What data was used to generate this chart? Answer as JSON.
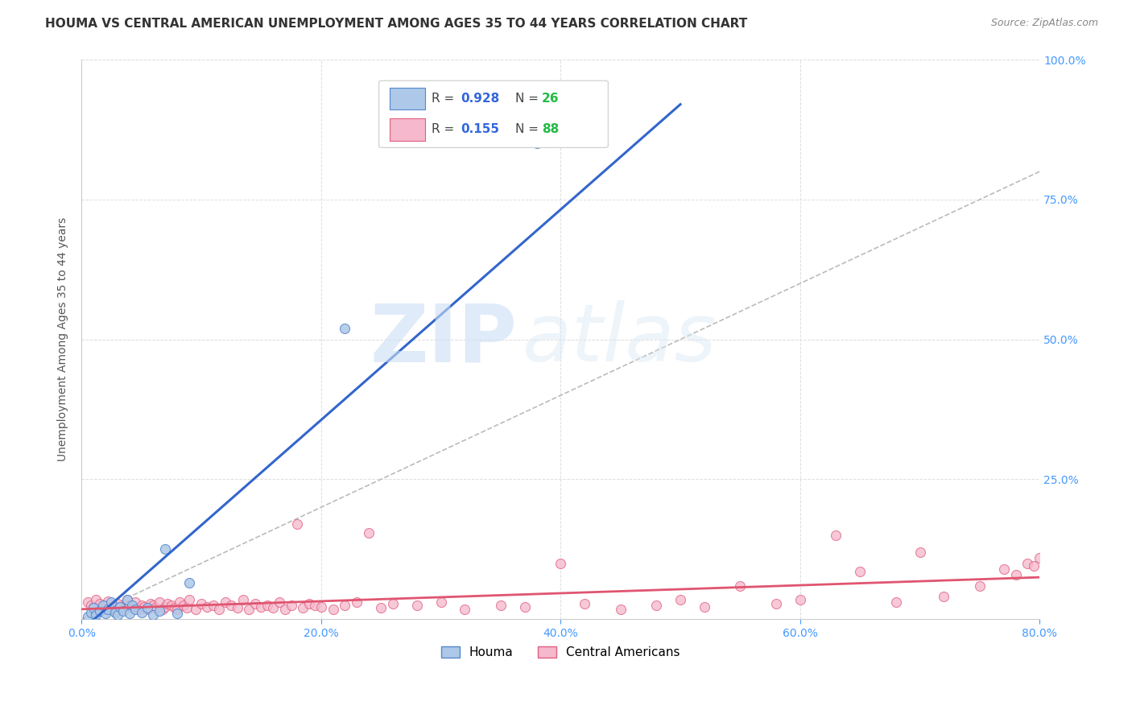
{
  "title": "HOUMA VS CENTRAL AMERICAN UNEMPLOYMENT AMONG AGES 35 TO 44 YEARS CORRELATION CHART",
  "source": "Source: ZipAtlas.com",
  "ylabel": "Unemployment Among Ages 35 to 44 years",
  "xlim": [
    0.0,
    0.8
  ],
  "ylim": [
    0.0,
    1.0
  ],
  "xticks": [
    0.0,
    0.2,
    0.4,
    0.6,
    0.8
  ],
  "xtick_labels": [
    "0.0%",
    "20.0%",
    "40.0%",
    "60.0%",
    "80.0%"
  ],
  "yticks": [
    0.0,
    0.25,
    0.5,
    0.75,
    1.0
  ],
  "ytick_labels": [
    "",
    "25.0%",
    "50.0%",
    "75.0%",
    "100.0%"
  ],
  "houma_color": "#adc8e8",
  "houma_edge_color": "#5588cc",
  "ca_color": "#f5b8cc",
  "ca_edge_color": "#e06080",
  "houma_line_color": "#3366cc",
  "ca_line_color": "#e05570",
  "ref_line_color": "#bbbbbb",
  "watermark_zip": "ZIP",
  "watermark_atlas": "atlas",
  "background_color": "#ffffff",
  "grid_color": "#dddddd",
  "title_fontsize": 11,
  "axis_label_fontsize": 10,
  "tick_fontsize": 10,
  "legend_fontsize": 11,
  "source_fontsize": 9,
  "marker_size": 75,
  "houma_x": [
    0.005,
    0.008,
    0.01,
    0.012,
    0.015,
    0.018,
    0.02,
    0.022,
    0.025,
    0.028,
    0.03,
    0.032,
    0.035,
    0.038,
    0.04,
    0.042,
    0.045,
    0.05,
    0.055,
    0.06,
    0.065,
    0.07,
    0.08,
    0.09,
    0.22,
    0.38
  ],
  "houma_y": [
    0.005,
    0.012,
    0.02,
    0.008,
    0.015,
    0.025,
    0.01,
    0.018,
    0.03,
    0.012,
    0.008,
    0.022,
    0.015,
    0.035,
    0.01,
    0.025,
    0.018,
    0.012,
    0.02,
    0.008,
    0.015,
    0.125,
    0.01,
    0.065,
    0.52,
    0.85
  ],
  "ca_x": [
    0.005,
    0.008,
    0.01,
    0.012,
    0.015,
    0.018,
    0.02,
    0.022,
    0.025,
    0.028,
    0.03,
    0.032,
    0.035,
    0.038,
    0.04,
    0.042,
    0.045,
    0.048,
    0.05,
    0.052,
    0.055,
    0.058,
    0.06,
    0.062,
    0.065,
    0.068,
    0.07,
    0.072,
    0.075,
    0.078,
    0.08,
    0.082,
    0.085,
    0.088,
    0.09,
    0.095,
    0.1,
    0.105,
    0.11,
    0.115,
    0.12,
    0.125,
    0.13,
    0.135,
    0.14,
    0.145,
    0.15,
    0.155,
    0.16,
    0.165,
    0.17,
    0.175,
    0.18,
    0.185,
    0.19,
    0.195,
    0.2,
    0.21,
    0.22,
    0.23,
    0.24,
    0.25,
    0.26,
    0.28,
    0.3,
    0.32,
    0.35,
    0.37,
    0.4,
    0.42,
    0.45,
    0.48,
    0.5,
    0.52,
    0.55,
    0.58,
    0.6,
    0.63,
    0.65,
    0.68,
    0.7,
    0.72,
    0.75,
    0.77,
    0.78,
    0.79,
    0.795,
    0.8
  ],
  "ca_y": [
    0.03,
    0.025,
    0.02,
    0.035,
    0.028,
    0.018,
    0.025,
    0.032,
    0.02,
    0.015,
    0.028,
    0.022,
    0.018,
    0.035,
    0.025,
    0.02,
    0.03,
    0.018,
    0.025,
    0.022,
    0.018,
    0.028,
    0.025,
    0.02,
    0.03,
    0.018,
    0.022,
    0.028,
    0.025,
    0.02,
    0.018,
    0.03,
    0.025,
    0.02,
    0.035,
    0.018,
    0.028,
    0.022,
    0.025,
    0.018,
    0.03,
    0.025,
    0.02,
    0.035,
    0.018,
    0.028,
    0.022,
    0.025,
    0.02,
    0.03,
    0.018,
    0.025,
    0.17,
    0.02,
    0.028,
    0.025,
    0.022,
    0.018,
    0.025,
    0.03,
    0.155,
    0.02,
    0.028,
    0.025,
    0.03,
    0.018,
    0.025,
    0.022,
    0.1,
    0.028,
    0.018,
    0.025,
    0.035,
    0.022,
    0.06,
    0.028,
    0.035,
    0.15,
    0.085,
    0.03,
    0.12,
    0.04,
    0.06,
    0.09,
    0.08,
    0.1,
    0.095,
    0.11
  ],
  "houma_line_x0": 0.0,
  "houma_line_y0": -0.02,
  "houma_line_x1": 0.5,
  "houma_line_y1": 0.92,
  "ca_line_x0": 0.0,
  "ca_line_y0": 0.018,
  "ca_line_x1": 0.8,
  "ca_line_y1": 0.075
}
